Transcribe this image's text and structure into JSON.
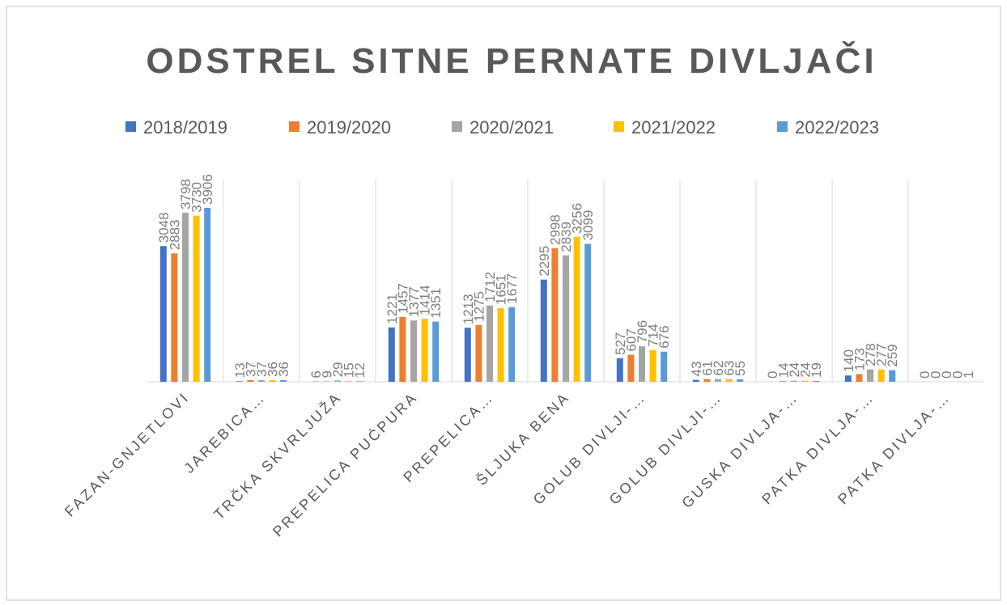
{
  "chart_data": {
    "type": "bar",
    "title": "ODSTREL SITNE PERNATE DIVLJAČI",
    "categories": [
      "FAZAN-GNJETLOVI",
      "JAREBICA…",
      "TRČKA SKVRLJUŽA",
      "PREPELICA PUĆPURA",
      "PREPELICA…",
      "ŠLJUKA BENA",
      "GOLUB DIVLJI-…",
      "GOLUB DIVLJI-…",
      "GUSKA DIVLJA-…",
      "PATKA DIVLJA-…",
      "PATKA DIVLJA-…"
    ],
    "series": [
      {
        "name": "2018/2019",
        "color": "#4472c4",
        "values": [
          3048,
          13,
          6,
          1221,
          1213,
          2295,
          527,
          43,
          0,
          140,
          0
        ]
      },
      {
        "name": "2019/2020",
        "color": "#ed7d31",
        "values": [
          2883,
          37,
          9,
          1457,
          1275,
          2998,
          607,
          61,
          14,
          173,
          0
        ]
      },
      {
        "name": "2020/2021",
        "color": "#a5a5a5",
        "values": [
          3798,
          37,
          29,
          1377,
          1712,
          2839,
          796,
          62,
          24,
          278,
          0
        ]
      },
      {
        "name": "2021/2022",
        "color": "#ffc000",
        "values": [
          3730,
          36,
          15,
          1414,
          1651,
          3256,
          714,
          63,
          24,
          277,
          0
        ]
      },
      {
        "name": "2022/2023",
        "color": "#5b9bd5",
        "values": [
          3906,
          36,
          12,
          1351,
          1677,
          3099,
          676,
          55,
          19,
          259,
          1
        ]
      }
    ],
    "legend": "top",
    "grid": true
  }
}
